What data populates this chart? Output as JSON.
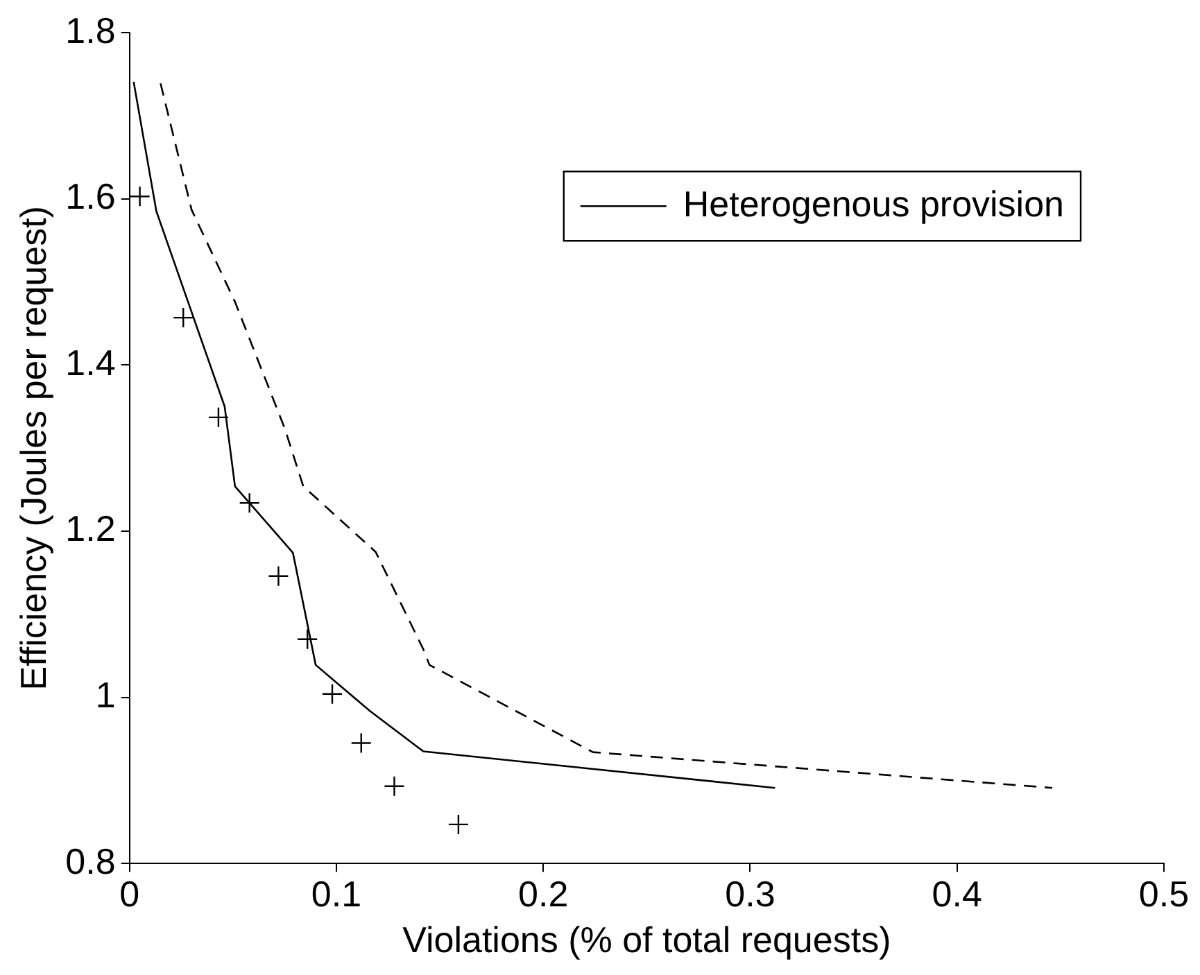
{
  "chart_data": {
    "type": "line",
    "xlabel": "Violations (% of total requests)",
    "ylabel": "Efficiency (Joules per request)",
    "xlim": [
      0,
      0.5
    ],
    "xticks": [
      0,
      0.1,
      0.2,
      0.3,
      0.4,
      0.5
    ],
    "ylim": [
      0.8,
      1.8
    ],
    "yticks": [
      0.8,
      1,
      1.2,
      1.4,
      1.6,
      1.8
    ],
    "grid": false,
    "legend": "top right",
    "series": [
      {
        "name": "Heterogenous provision",
        "type": "line",
        "color": "#000000",
        "line_style": "solid",
        "marker": "none",
        "x": [
          0.002,
          0.013,
          0.046,
          0.051,
          0.079,
          0.09,
          0.116,
          0.142,
          0.312
        ],
        "values": [
          1.741,
          1.585,
          1.35,
          1.254,
          1.174,
          1.039,
          0.984,
          0.935,
          0.891
        ]
      },
      {
        "type": "line",
        "color": "#000000",
        "line_style": "dashed",
        "marker": "none",
        "x": [
          0.015,
          0.03,
          0.051,
          0.075,
          0.084,
          0.119,
          0.142,
          0.145,
          0.224,
          0.446
        ],
        "values": [
          1.739,
          1.587,
          1.476,
          1.324,
          1.254,
          1.175,
          1.058,
          1.039,
          0.934,
          0.891
        ]
      },
      {
        "type": "scatter",
        "color": "#000000",
        "marker": "cross",
        "x": [
          0.005,
          0.026,
          0.043,
          0.058,
          0.072,
          0.086,
          0.098,
          0.112,
          0.128,
          0.159
        ],
        "values": [
          1.603,
          1.457,
          1.337,
          1.234,
          1.146,
          1.07,
          1.004,
          0.945,
          0.893,
          0.847
        ]
      }
    ]
  }
}
